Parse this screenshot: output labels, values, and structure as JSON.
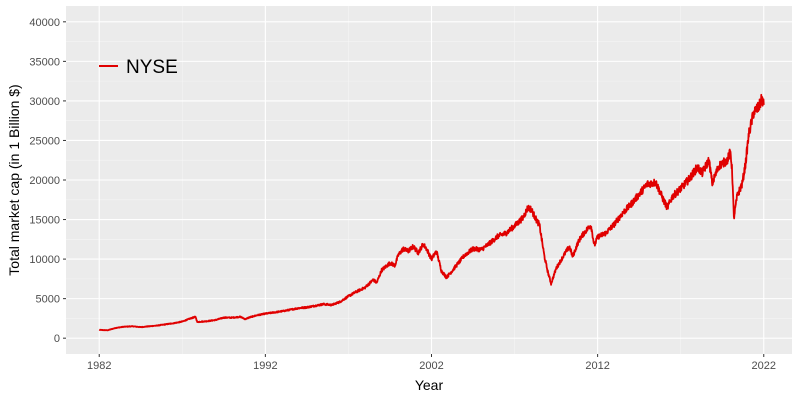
{
  "chart_data": {
    "type": "line",
    "title": "",
    "xlabel": "Year",
    "ylabel": "Total market cap (in 1 Billion $)",
    "xlim": [
      1980,
      2023.7
    ],
    "ylim": [
      -2000,
      42000
    ],
    "x_ticks": [
      1982,
      1992,
      2002,
      2012,
      2022
    ],
    "x_tick_labels": [
      "1982",
      "1992",
      "2002",
      "2012",
      "2022"
    ],
    "y_ticks": [
      0,
      5000,
      10000,
      15000,
      20000,
      25000,
      30000,
      35000,
      40000
    ],
    "y_tick_labels": [
      "0",
      "5000",
      "10000",
      "15000",
      "20000",
      "25000",
      "30000",
      "35000",
      "40000"
    ],
    "grid": true,
    "legend_position": "top-left",
    "series": [
      {
        "name": "NYSE",
        "color": "#e00000",
        "points": [
          [
            1982.0,
            1050
          ],
          [
            1982.5,
            1000
          ],
          [
            1983.0,
            1300
          ],
          [
            1983.5,
            1450
          ],
          [
            1984.0,
            1500
          ],
          [
            1984.5,
            1400
          ],
          [
            1985.0,
            1500
          ],
          [
            1985.5,
            1600
          ],
          [
            1986.0,
            1750
          ],
          [
            1986.5,
            1900
          ],
          [
            1987.0,
            2100
          ],
          [
            1987.5,
            2500
          ],
          [
            1987.8,
            2700
          ],
          [
            1987.9,
            2050
          ],
          [
            1988.5,
            2150
          ],
          [
            1989.0,
            2300
          ],
          [
            1989.5,
            2600
          ],
          [
            1990.0,
            2600
          ],
          [
            1990.5,
            2700
          ],
          [
            1990.8,
            2400
          ],
          [
            1991.0,
            2600
          ],
          [
            1991.5,
            2900
          ],
          [
            1992.0,
            3100
          ],
          [
            1993.0,
            3400
          ],
          [
            1994.0,
            3800
          ],
          [
            1994.5,
            3900
          ],
          [
            1995.0,
            4100
          ],
          [
            1995.5,
            4300
          ],
          [
            1996.0,
            4200
          ],
          [
            1996.5,
            4600
          ],
          [
            1997.0,
            5300
          ],
          [
            1997.5,
            5900
          ],
          [
            1998.0,
            6400
          ],
          [
            1998.5,
            7400
          ],
          [
            1998.7,
            7000
          ],
          [
            1999.0,
            8600
          ],
          [
            1999.5,
            9500
          ],
          [
            1999.8,
            9200
          ],
          [
            2000.0,
            10500
          ],
          [
            2000.3,
            11300
          ],
          [
            2000.6,
            11000
          ],
          [
            2000.9,
            11600
          ],
          [
            2001.2,
            10800
          ],
          [
            2001.5,
            11900
          ],
          [
            2001.7,
            11300
          ],
          [
            2002.0,
            10000
          ],
          [
            2002.3,
            11000
          ],
          [
            2002.6,
            8500
          ],
          [
            2002.9,
            7700
          ],
          [
            2003.2,
            8400
          ],
          [
            2003.5,
            9200
          ],
          [
            2004.0,
            10500
          ],
          [
            2004.5,
            11300
          ],
          [
            2005.0,
            11200
          ],
          [
            2005.5,
            12000
          ],
          [
            2006.0,
            12900
          ],
          [
            2006.5,
            13300
          ],
          [
            2007.0,
            14200
          ],
          [
            2007.5,
            15200
          ],
          [
            2007.8,
            16500
          ],
          [
            2008.0,
            16300
          ],
          [
            2008.3,
            15000
          ],
          [
            2008.5,
            14300
          ],
          [
            2008.8,
            10300
          ],
          [
            2009.0,
            8400
          ],
          [
            2009.2,
            6900
          ],
          [
            2009.5,
            8800
          ],
          [
            2010.0,
            10600
          ],
          [
            2010.3,
            11600
          ],
          [
            2010.5,
            10300
          ],
          [
            2010.8,
            12000
          ],
          [
            2011.0,
            12800
          ],
          [
            2011.3,
            13600
          ],
          [
            2011.6,
            14300
          ],
          [
            2011.8,
            11700
          ],
          [
            2012.0,
            12800
          ],
          [
            2012.5,
            13300
          ],
          [
            2013.0,
            14400
          ],
          [
            2013.5,
            15800
          ],
          [
            2014.0,
            16900
          ],
          [
            2014.5,
            18200
          ],
          [
            2015.0,
            19500
          ],
          [
            2015.5,
            19700
          ],
          [
            2016.0,
            17300
          ],
          [
            2016.2,
            16500
          ],
          [
            2016.5,
            17900
          ],
          [
            2017.0,
            18900
          ],
          [
            2017.5,
            20100
          ],
          [
            2018.0,
            21600
          ],
          [
            2018.3,
            20900
          ],
          [
            2018.7,
            22500
          ],
          [
            2018.9,
            19600
          ],
          [
            2019.3,
            21800
          ],
          [
            2019.8,
            22500
          ],
          [
            2020.0,
            23600
          ],
          [
            2020.1,
            21000
          ],
          [
            2020.2,
            15200
          ],
          [
            2020.4,
            18000
          ],
          [
            2020.7,
            19500
          ],
          [
            2020.9,
            22000
          ],
          [
            2021.1,
            25800
          ],
          [
            2021.4,
            28600
          ],
          [
            2021.7,
            29200
          ],
          [
            2021.9,
            30300
          ],
          [
            2022.0,
            29500
          ]
        ]
      }
    ]
  }
}
